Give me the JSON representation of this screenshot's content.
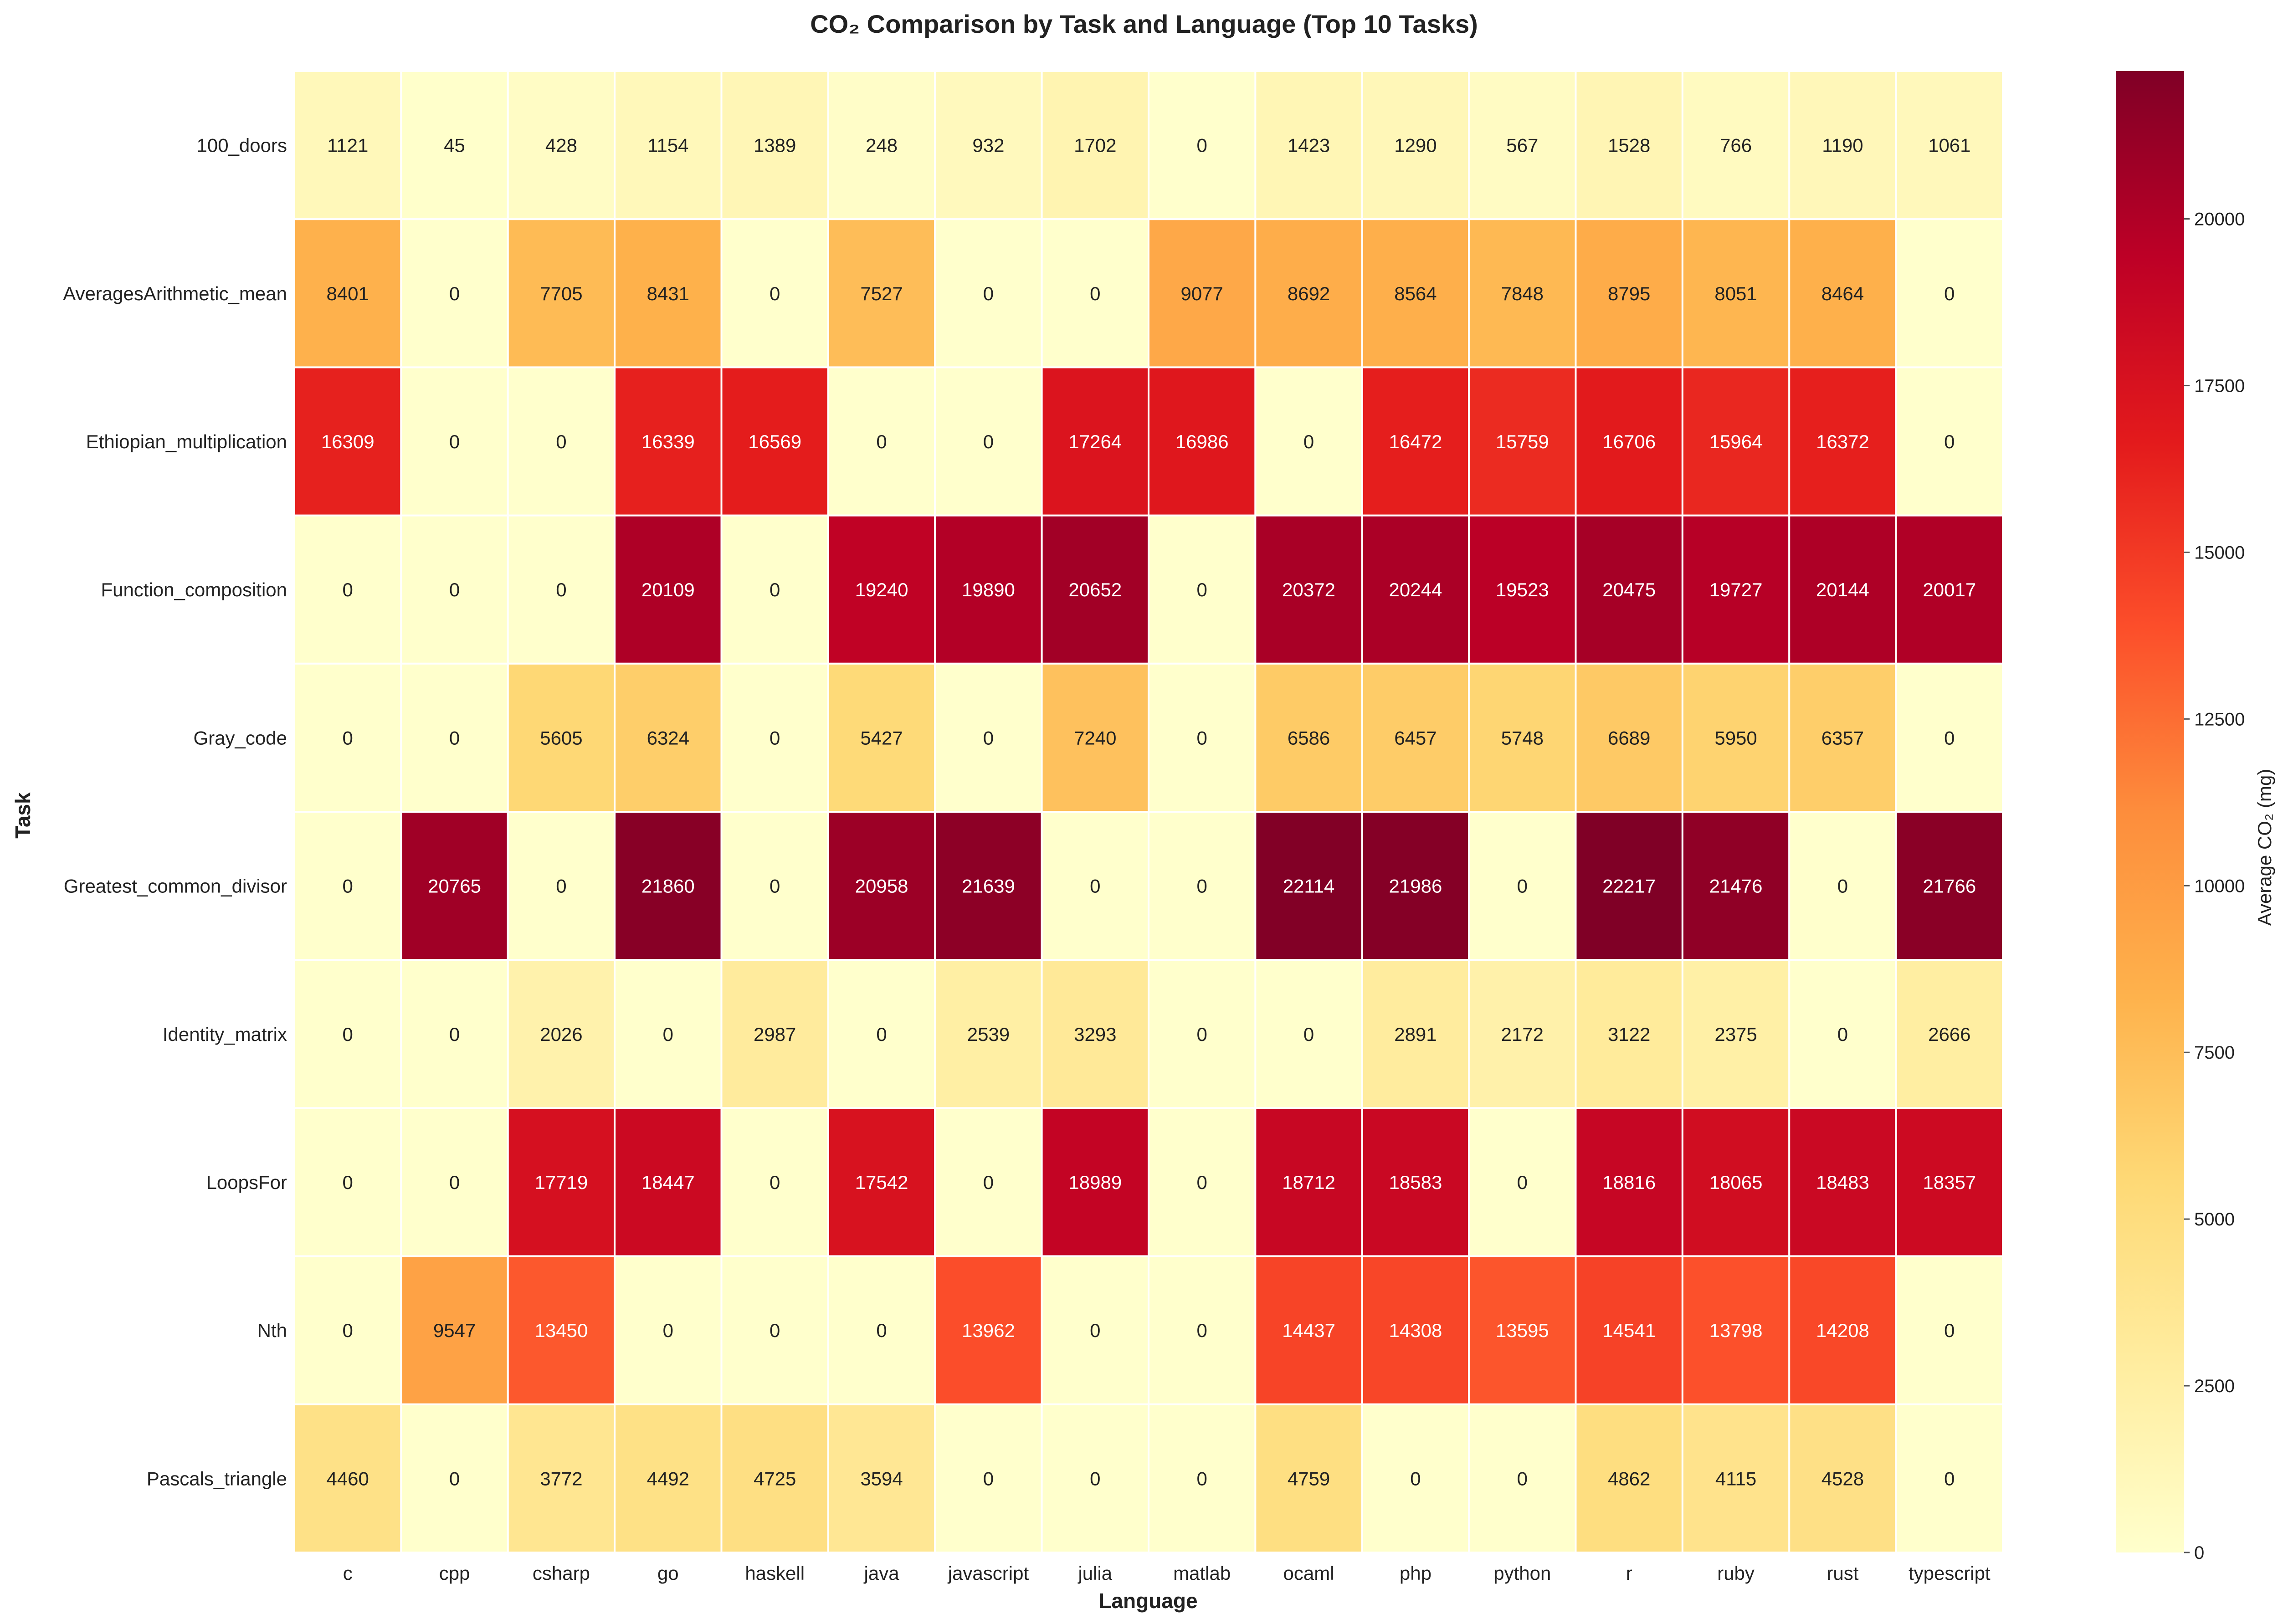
{
  "chart_data": {
    "type": "heatmap",
    "title": "CO₂ Comparison by Task and Language (Top 10 Tasks)",
    "xlabel": "Language",
    "ylabel": "Task",
    "colorbar_label": "Average CO₂ (mg)",
    "colormap": [
      "#ffffcc",
      "#ffeda0",
      "#fed976",
      "#feb24c",
      "#fd8d3c",
      "#fc4e2a",
      "#e31a1c",
      "#bd0026",
      "#800026"
    ],
    "vmin": 0,
    "vmax": 22217,
    "colorbar_ticks": [
      0,
      2500,
      5000,
      7500,
      10000,
      12500,
      15000,
      17500,
      20000
    ],
    "x_categories": [
      "c",
      "cpp",
      "csharp",
      "go",
      "haskell",
      "java",
      "javascript",
      "julia",
      "matlab",
      "ocaml",
      "php",
      "python",
      "r",
      "ruby",
      "rust",
      "typescript"
    ],
    "y_categories": [
      "100_doors",
      "AveragesArithmetic_mean",
      "Ethiopian_multiplication",
      "Function_composition",
      "Gray_code",
      "Greatest_common_divisor",
      "Identity_matrix",
      "LoopsFor",
      "Nth",
      "Pascals_triangle"
    ],
    "values": [
      [
        1121,
        45,
        428,
        1154,
        1389,
        248,
        932,
        1702,
        0,
        1423,
        1290,
        567,
        1528,
        766,
        1190,
        1061
      ],
      [
        8401,
        0,
        7705,
        8431,
        0,
        7527,
        0,
        0,
        9077,
        8692,
        8564,
        7848,
        8795,
        8051,
        8464,
        0
      ],
      [
        16309,
        0,
        0,
        16339,
        16569,
        0,
        0,
        17264,
        16986,
        0,
        16472,
        15759,
        16706,
        15964,
        16372,
        0
      ],
      [
        0,
        0,
        0,
        20109,
        0,
        19240,
        19890,
        20652,
        0,
        20372,
        20244,
        19523,
        20475,
        19727,
        20144,
        20017
      ],
      [
        0,
        0,
        5605,
        6324,
        0,
        5427,
        0,
        7240,
        0,
        6586,
        6457,
        5748,
        6689,
        5950,
        6357,
        0
      ],
      [
        0,
        20765,
        0,
        21860,
        0,
        20958,
        21639,
        0,
        0,
        22114,
        21986,
        0,
        22217,
        21476,
        0,
        21766
      ],
      [
        0,
        0,
        2026,
        0,
        2987,
        0,
        2539,
        3293,
        0,
        0,
        2891,
        2172,
        3122,
        2375,
        0,
        2666
      ],
      [
        0,
        0,
        17719,
        18447,
        0,
        17542,
        0,
        18989,
        0,
        18712,
        18583,
        0,
        18816,
        18065,
        18483,
        18357
      ],
      [
        0,
        9547,
        13450,
        0,
        0,
        0,
        13962,
        0,
        0,
        14437,
        14308,
        13595,
        14541,
        13798,
        14208,
        0
      ],
      [
        4460,
        0,
        3772,
        4492,
        4725,
        3594,
        0,
        0,
        0,
        4759,
        0,
        0,
        4862,
        4115,
        4528,
        0
      ]
    ],
    "grid": false
  }
}
